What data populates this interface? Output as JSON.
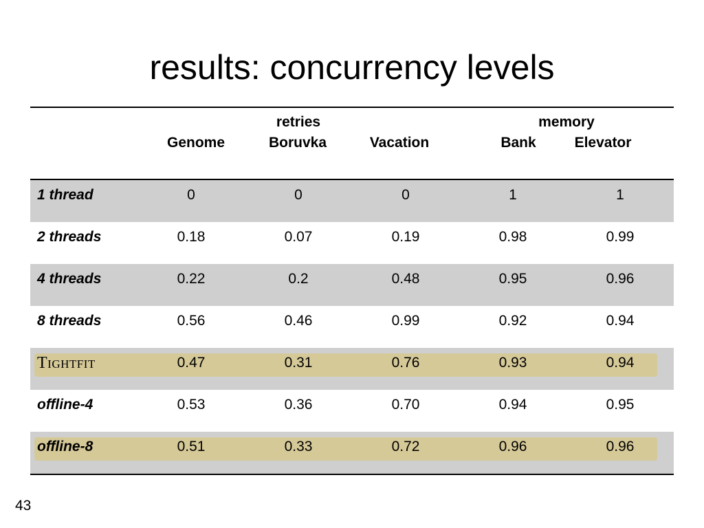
{
  "slide": {
    "title": "results: concurrency levels",
    "page_number": "43"
  },
  "table": {
    "group_headers": {
      "retries": "retries",
      "memory": "memory"
    },
    "columns": [
      "Genome",
      "Boruvka",
      "Vacation",
      "Bank",
      "Elevator"
    ],
    "rows": [
      {
        "label": "1 thread",
        "values": [
          "0",
          "0",
          "0",
          "1",
          "1"
        ],
        "shaded": true,
        "highlighted": false
      },
      {
        "label": "2 threads",
        "values": [
          "0.18",
          "0.07",
          "0.19",
          "0.98",
          "0.99"
        ],
        "shaded": false,
        "highlighted": false
      },
      {
        "label": "4 threads",
        "values": [
          "0.22",
          "0.2",
          "0.48",
          "0.95",
          "0.96"
        ],
        "shaded": true,
        "highlighted": false
      },
      {
        "label": "8 threads",
        "values": [
          "0.56",
          "0.46",
          "0.99",
          "0.92",
          "0.94"
        ],
        "shaded": false,
        "highlighted": false
      },
      {
        "label": "Tightfit",
        "values": [
          "0.47",
          "0.31",
          "0.76",
          "0.93",
          "0.94"
        ],
        "shaded": true,
        "highlighted": true
      },
      {
        "label": "offline-4",
        "values": [
          "0.53",
          "0.36",
          "0.70",
          "0.94",
          "0.95"
        ],
        "shaded": false,
        "highlighted": false
      },
      {
        "label": "offline-8",
        "values": [
          "0.51",
          "0.33",
          "0.72",
          "0.96",
          "0.96"
        ],
        "shaded": true,
        "highlighted": true
      }
    ]
  },
  "colors": {
    "row_shade": "#cfcfcf",
    "highlight": "#d6c998"
  }
}
